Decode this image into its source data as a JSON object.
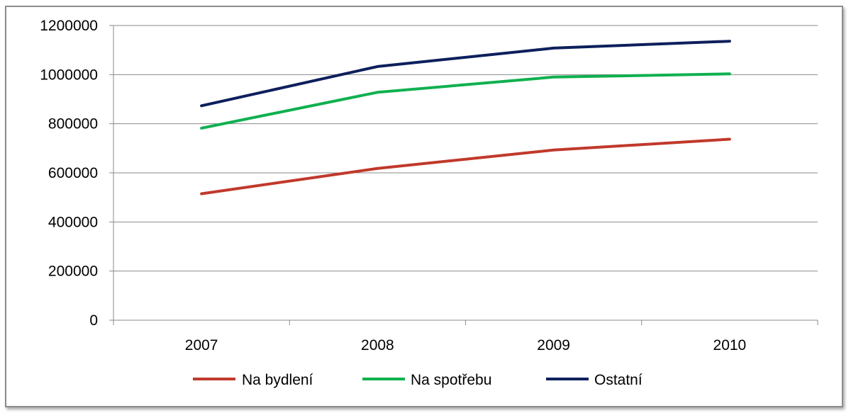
{
  "chart_data": {
    "type": "line",
    "title": "",
    "xlabel": "",
    "ylabel": "",
    "categories": [
      "2007",
      "2008",
      "2009",
      "2010"
    ],
    "ylim": [
      0,
      1200000
    ],
    "yticks": [
      0,
      200000,
      400000,
      600000,
      800000,
      1000000,
      1200000
    ],
    "ytick_labels": [
      "0",
      "200000",
      "400000",
      "600000",
      "800000",
      "1000000",
      "1200000"
    ],
    "grid": true,
    "legend_position": "bottom",
    "series": [
      {
        "name": "Na bydlení",
        "color": "#C0392B",
        "values": [
          515000,
          618000,
          693000,
          737000
        ]
      },
      {
        "name": "Na spotřebu",
        "color": "#10B050",
        "values": [
          782000,
          928000,
          990000,
          1003000
        ]
      },
      {
        "name": "Ostatní",
        "color": "#0D1F5C",
        "values": [
          873000,
          1033000,
          1108000,
          1136000
        ]
      }
    ]
  }
}
